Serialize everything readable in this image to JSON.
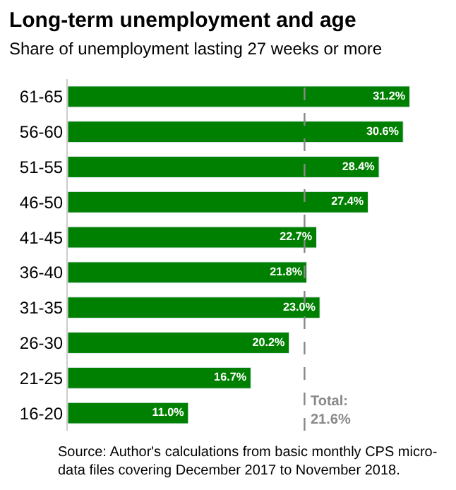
{
  "chart_data": {
    "type": "bar",
    "orientation": "horizontal",
    "title": "Long-term unemployment and age",
    "subtitle": "Share of unemployment lasting 27 weeks or more",
    "categories": [
      "61-65",
      "56-60",
      "51-55",
      "46-50",
      "41-45",
      "36-40",
      "31-35",
      "26-30",
      "21-25",
      "16-20"
    ],
    "values": [
      31.2,
      30.6,
      28.4,
      27.4,
      22.7,
      21.8,
      23.0,
      20.2,
      16.7,
      11.0
    ],
    "value_labels": [
      "31.2%",
      "30.6%",
      "28.4%",
      "27.4%",
      "22.7%",
      "21.8%",
      "23.0%",
      "20.2%",
      "16.7%",
      "11.0%"
    ],
    "color": "#008000",
    "tick_labels": "y",
    "legend": false,
    "ref_lines": [
      {
        "axis": "x",
        "value": 21.6,
        "label": "Total:\n21.6%",
        "color": "#888888",
        "line_style": "dashed"
      }
    ],
    "annotations": [
      "Source: Author's calculations from basic monthly CPS micro-\ndata files covering December 2017 to November 2018."
    ]
  }
}
